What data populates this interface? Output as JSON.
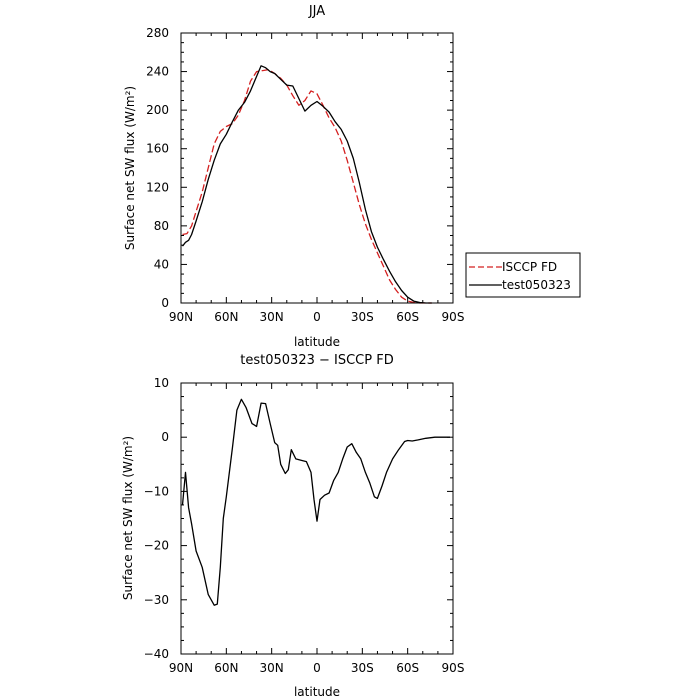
{
  "chart_data": [
    {
      "type": "line",
      "title": "JJA",
      "xlabel": "latitude",
      "ylabel": "Surface net SW flux (W/m²)",
      "xlim": [
        90,
        -90
      ],
      "ylim": [
        0,
        280
      ],
      "xticks": [
        90,
        60,
        30,
        0,
        -30,
        -60,
        -90
      ],
      "xticklabels": [
        "90N",
        "60N",
        "30N",
        "0",
        "30S",
        "60S",
        "90S"
      ],
      "yticks": [
        0,
        40,
        80,
        120,
        160,
        200,
        240,
        280
      ],
      "yticklabels": [
        "0",
        "40",
        "80",
        "120",
        "160",
        "200",
        "240",
        "280"
      ],
      "legend_position": "right",
      "series": [
        {
          "name": "ISCCP FD",
          "color": "#d42020",
          "dash": "dashed",
          "x": [
            89,
            86,
            83,
            80,
            76,
            72,
            68,
            64,
            60,
            56,
            52,
            48,
            44,
            40,
            36,
            32,
            28,
            24,
            20,
            16,
            12,
            8,
            4,
            0,
            -4,
            -8,
            -12,
            -16,
            -20,
            -24,
            -28,
            -32,
            -36,
            -40,
            -44,
            -48,
            -52,
            -56,
            -60,
            -64,
            -68,
            -72,
            -76
          ],
          "y": [
            71,
            72,
            80,
            95,
            115,
            140,
            165,
            178,
            183,
            186,
            195,
            210,
            230,
            240,
            241,
            242,
            238,
            233,
            226,
            215,
            205,
            210,
            220,
            217,
            205,
            192,
            182,
            168,
            148,
            125,
            102,
            82,
            66,
            52,
            38,
            24,
            14,
            6,
            2,
            0.5,
            0,
            0,
            0
          ]
        },
        {
          "name": "test050323",
          "color": "#000000",
          "dash": "solid",
          "x": [
            89,
            87,
            85,
            83,
            80,
            76,
            72,
            68,
            64,
            60,
            56,
            52,
            48,
            44,
            40,
            37,
            34,
            31,
            28,
            24,
            20,
            16,
            12,
            8,
            4,
            0,
            -4,
            -8,
            -12,
            -16,
            -20,
            -24,
            -28,
            -32,
            -36,
            -40,
            -44,
            -48,
            -52,
            -56,
            -60,
            -64,
            -68,
            -72,
            -76
          ],
          "y": [
            59,
            63,
            65,
            71,
            85,
            105,
            128,
            148,
            165,
            175,
            188,
            200,
            208,
            220,
            235,
            246,
            244,
            240,
            238,
            232,
            226,
            225,
            212,
            199,
            205,
            209,
            204,
            198,
            188,
            180,
            168,
            150,
            125,
            97,
            74,
            58,
            45,
            33,
            22,
            13,
            6,
            2,
            0.5,
            0,
            0
          ]
        }
      ]
    },
    {
      "type": "line",
      "title": "test050323 − ISCCP FD",
      "xlabel": "latitude",
      "ylabel": "Surface net SW flux (W/m²)",
      "xlim": [
        90,
        -90
      ],
      "ylim": [
        -40,
        10
      ],
      "xticks": [
        90,
        60,
        30,
        0,
        -30,
        -60,
        -90
      ],
      "xticklabels": [
        "90N",
        "60N",
        "30N",
        "0",
        "30S",
        "60S",
        "90S"
      ],
      "yticks": [
        -40,
        -30,
        -20,
        -10,
        0,
        10
      ],
      "yticklabels": [
        "−40",
        "−30",
        "−20",
        "−10",
        "0",
        "10"
      ],
      "series": [
        {
          "color": "#000000",
          "dash": "solid",
          "x": [
            89,
            87,
            85,
            83,
            80,
            76,
            72,
            68,
            66,
            64,
            62,
            60,
            56,
            53,
            50,
            47,
            43,
            40,
            37,
            34,
            31,
            28,
            26,
            24,
            21,
            19,
            17,
            14,
            10,
            7,
            4,
            2,
            0,
            -2,
            -5,
            -8,
            -11,
            -14,
            -17,
            -20,
            -23,
            -26,
            -29,
            -32,
            -35,
            -38,
            -40,
            -43,
            -46,
            -50,
            -54,
            -58,
            -60,
            -63,
            -67,
            -72,
            -78,
            -84,
            -88
          ],
          "y": [
            -12.5,
            -6.5,
            -13,
            -16,
            -21,
            -24,
            -29,
            -31,
            -30.8,
            -24,
            -15,
            -11,
            -2,
            5,
            7,
            5.5,
            2.5,
            2,
            6.3,
            6.2,
            2.5,
            -1,
            -1.5,
            -5,
            -6.7,
            -6,
            -2.3,
            -4,
            -4.3,
            -4.5,
            -6.5,
            -11.5,
            -15.5,
            -11.5,
            -10.7,
            -10.3,
            -8,
            -6.5,
            -4,
            -1.8,
            -1.2,
            -2.8,
            -4,
            -6.5,
            -8.5,
            -11,
            -11.3,
            -9,
            -6.5,
            -4,
            -2.3,
            -0.8,
            -0.6,
            -0.7,
            -0.5,
            -0.2,
            0,
            0,
            0
          ]
        }
      ]
    }
  ]
}
